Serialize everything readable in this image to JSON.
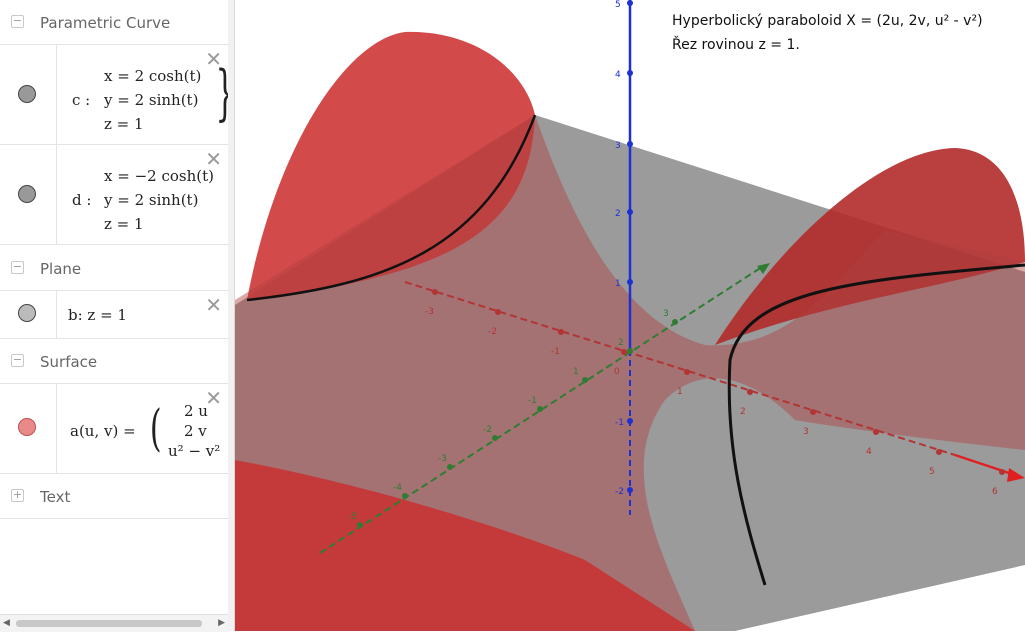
{
  "algebra": {
    "groups": [
      {
        "label": "Parametric Curve",
        "toggle": "−"
      },
      {
        "label": "Plane",
        "toggle": "−"
      },
      {
        "label": "Surface",
        "toggle": "−"
      },
      {
        "label": "Text",
        "toggle": "+"
      }
    ],
    "curve_c": {
      "name": "c :",
      "x": "x = 2 cosh(t)",
      "y": "y = 2 sinh(t)",
      "z": "z = 1"
    },
    "curve_d": {
      "name": "d :",
      "x": "x = −2 cosh(t)",
      "y": "y = 2 sinh(t)",
      "z": "z = 1"
    },
    "plane_b": {
      "expr": "b: z = 1"
    },
    "surface_a": {
      "name": "a(u, v) =",
      "r1": "2 u",
      "r2": "2 v",
      "r3": "u² − v²"
    },
    "delete_glyph": "✕",
    "colors": {
      "curve_dot": "#999999",
      "plane_dot": "#bbbbbb",
      "surface_dot": "#e8898a"
    }
  },
  "scrollbar": {
    "left_arrow": "◀",
    "right_arrow": "▶"
  },
  "graphics": {
    "caption_line1": "Hyperbolický paraboloid X = (2u, 2v, u² - v²)",
    "caption_line2": "Řez rovinou z = 1.",
    "x_ticks": [
      "-3",
      "-2",
      "-1",
      "0",
      "1",
      "2",
      "3",
      "4",
      "5",
      "6"
    ],
    "y_ticks": [
      "-5",
      "-4",
      "-3",
      "-2",
      "-1",
      "1",
      "2",
      "3"
    ],
    "z_ticks": [
      "-2",
      "-1",
      "1",
      "2",
      "3",
      "4",
      "5"
    ],
    "colors": {
      "surface": "#c72d2d",
      "plane": "#808080",
      "x_axis": "#b33434",
      "y_axis": "#2e7d32",
      "z_axis": "#1e2fd6",
      "curve": "#111111"
    }
  }
}
